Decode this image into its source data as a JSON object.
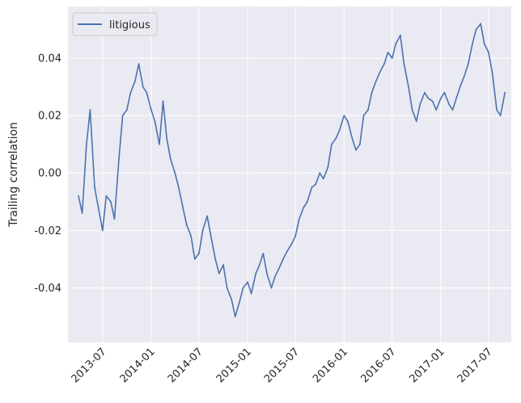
{
  "chart_data": {
    "type": "line",
    "title": "",
    "xlabel": "",
    "ylabel": "Trailing correlation",
    "x_ticks": [
      "2013-07",
      "2014-01",
      "2014-07",
      "2015-01",
      "2015-07",
      "2016-01",
      "2016-07",
      "2017-01",
      "2017-07"
    ],
    "y_ticks": [
      "0.04",
      "0.02",
      "0.00",
      "-0.02",
      "-0.04"
    ],
    "y_tick_values": [
      0.04,
      0.02,
      0.0,
      -0.02,
      -0.04
    ],
    "ylim": [
      -0.059,
      0.058
    ],
    "xlim": [
      "2013-02-20",
      "2017-09-25"
    ],
    "grid": true,
    "legend": "top-left",
    "series": [
      {
        "name": "litigious",
        "color": "#4c72b0",
        "x": [
          "2013-04-01",
          "2013-04-15",
          "2013-05-01",
          "2013-05-15",
          "2013-06-01",
          "2013-06-15",
          "2013-07-01",
          "2013-07-15",
          "2013-08-01",
          "2013-08-15",
          "2013-09-01",
          "2013-09-15",
          "2013-10-01",
          "2013-10-15",
          "2013-11-01",
          "2013-11-15",
          "2013-12-01",
          "2013-12-15",
          "2014-01-01",
          "2014-01-15",
          "2014-02-01",
          "2014-02-15",
          "2014-03-01",
          "2014-03-15",
          "2014-04-01",
          "2014-04-15",
          "2014-05-01",
          "2014-05-15",
          "2014-06-01",
          "2014-06-15",
          "2014-07-01",
          "2014-07-15",
          "2014-08-01",
          "2014-08-15",
          "2014-09-01",
          "2014-09-15",
          "2014-10-01",
          "2014-10-15",
          "2014-11-01",
          "2014-11-15",
          "2014-12-01",
          "2014-12-15",
          "2015-01-01",
          "2015-01-15",
          "2015-02-01",
          "2015-02-15",
          "2015-03-01",
          "2015-03-15",
          "2015-04-01",
          "2015-04-15",
          "2015-05-01",
          "2015-05-15",
          "2015-06-01",
          "2015-06-15",
          "2015-07-01",
          "2015-07-15",
          "2015-08-01",
          "2015-08-15",
          "2015-09-01",
          "2015-09-15",
          "2015-10-01",
          "2015-10-15",
          "2015-11-01",
          "2015-11-15",
          "2015-12-01",
          "2015-12-15",
          "2016-01-01",
          "2016-01-15",
          "2016-02-01",
          "2016-02-15",
          "2016-03-01",
          "2016-03-15",
          "2016-04-01",
          "2016-04-15",
          "2016-05-01",
          "2016-05-15",
          "2016-06-01",
          "2016-06-15",
          "2016-07-01",
          "2016-07-15",
          "2016-08-01",
          "2016-08-15",
          "2016-09-01",
          "2016-09-15",
          "2016-10-01",
          "2016-10-15",
          "2016-11-01",
          "2016-11-15",
          "2016-12-01",
          "2016-12-15",
          "2017-01-01",
          "2017-01-15",
          "2017-02-01",
          "2017-02-15",
          "2017-03-01",
          "2017-03-15",
          "2017-04-01",
          "2017-04-15",
          "2017-05-01",
          "2017-05-15",
          "2017-06-01",
          "2017-06-15",
          "2017-07-01",
          "2017-07-15",
          "2017-08-01",
          "2017-08-15",
          "2017-09-01"
        ],
        "y": [
          -0.008,
          -0.014,
          0.01,
          0.022,
          -0.005,
          -0.012,
          -0.02,
          -0.008,
          -0.01,
          -0.016,
          0.005,
          0.02,
          0.022,
          0.028,
          0.032,
          0.038,
          0.03,
          0.028,
          0.022,
          0.018,
          0.01,
          0.025,
          0.012,
          0.005,
          0.0,
          -0.005,
          -0.012,
          -0.018,
          -0.022,
          -0.03,
          -0.028,
          -0.02,
          -0.015,
          -0.022,
          -0.03,
          -0.035,
          -0.032,
          -0.04,
          -0.044,
          -0.05,
          -0.045,
          -0.04,
          -0.038,
          -0.042,
          -0.035,
          -0.032,
          -0.028,
          -0.035,
          -0.04,
          -0.036,
          -0.033,
          -0.03,
          -0.027,
          -0.025,
          -0.022,
          -0.016,
          -0.012,
          -0.01,
          -0.005,
          -0.004,
          0.0,
          -0.002,
          0.002,
          0.01,
          0.012,
          0.015,
          0.02,
          0.018,
          0.012,
          0.008,
          0.01,
          0.02,
          0.022,
          0.028,
          0.032,
          0.035,
          0.038,
          0.042,
          0.04,
          0.045,
          0.048,
          0.038,
          0.03,
          0.022,
          0.018,
          0.024,
          0.028,
          0.026,
          0.025,
          0.022,
          0.026,
          0.028,
          0.024,
          0.022,
          0.026,
          0.03,
          0.034,
          0.038,
          0.045,
          0.05,
          0.052,
          0.045,
          0.042,
          0.035,
          0.022,
          0.02,
          0.028
        ]
      }
    ]
  }
}
